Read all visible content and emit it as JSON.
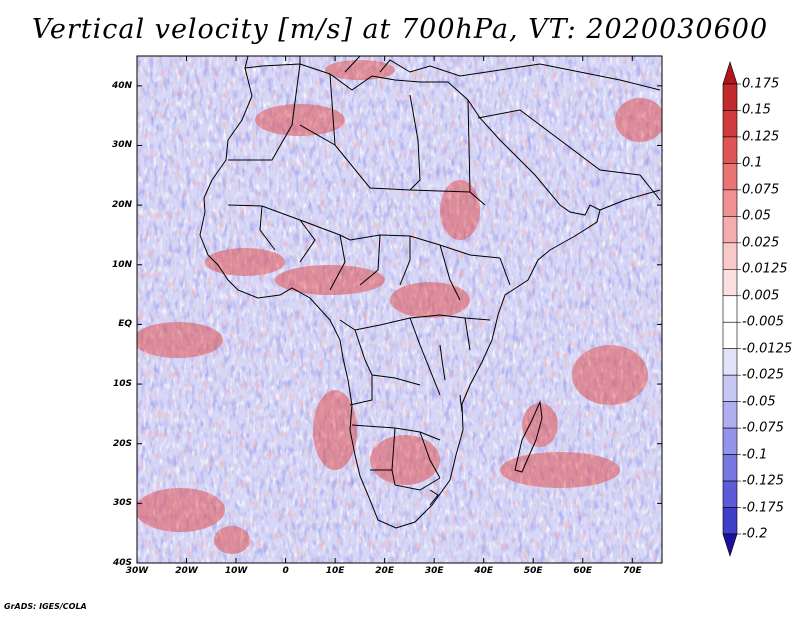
{
  "title": "Vertical velocity [m/s] at 700hPa, VT: 2020030600",
  "credit": "GrADS: IGES/COLA",
  "map": {
    "lon_range": [
      -30,
      76
    ],
    "lat_range": [
      -40,
      45
    ],
    "lat_ticks": [
      {
        "value": 40,
        "label": "40N"
      },
      {
        "value": 30,
        "label": "30N"
      },
      {
        "value": 20,
        "label": "20N"
      },
      {
        "value": 10,
        "label": "10N"
      },
      {
        "value": 0,
        "label": "EQ"
      },
      {
        "value": -10,
        "label": "10S"
      },
      {
        "value": -20,
        "label": "20S"
      },
      {
        "value": -30,
        "label": "30S"
      },
      {
        "value": -40,
        "label": "40S"
      }
    ],
    "lon_ticks": [
      {
        "value": -30,
        "label": "30W"
      },
      {
        "value": -20,
        "label": "20W"
      },
      {
        "value": -10,
        "label": "10W"
      },
      {
        "value": 0,
        "label": "0"
      },
      {
        "value": 10,
        "label": "10E"
      },
      {
        "value": 20,
        "label": "20E"
      },
      {
        "value": 30,
        "label": "30E"
      },
      {
        "value": 40,
        "label": "40E"
      },
      {
        "value": 50,
        "label": "50E"
      },
      {
        "value": 60,
        "label": "60E"
      },
      {
        "value": 70,
        "label": "70E"
      }
    ]
  },
  "colorbar": {
    "top_color": "#b4141e",
    "bottom_color": "#1e0ea0",
    "levels": [
      {
        "label": "0.175",
        "color": "#c02a2e"
      },
      {
        "label": "0.15",
        "color": "#d03c3e"
      },
      {
        "label": "0.125",
        "color": "#de5656"
      },
      {
        "label": "0.1",
        "color": "#e87474"
      },
      {
        "label": "0.075",
        "color": "#f09090"
      },
      {
        "label": "0.05",
        "color": "#f5acac"
      },
      {
        "label": "0.025",
        "color": "#f9c8c8"
      },
      {
        "label": "0.0125",
        "color": "#fce0e0"
      },
      {
        "label": "0.005",
        "color": "#ffffff"
      },
      {
        "label": "-0.005",
        "color": "#ffffff"
      },
      {
        "label": "-0.0125",
        "color": "#e2e2fa"
      },
      {
        "label": "-0.025",
        "color": "#c8c8f5"
      },
      {
        "label": "-0.05",
        "color": "#aeaef0"
      },
      {
        "label": "-0.075",
        "color": "#9494ea"
      },
      {
        "label": "-0.1",
        "color": "#7878e2"
      },
      {
        "label": "-0.125",
        "color": "#5c5cd8"
      },
      {
        "label": "-0.175",
        "color": "#3e3ec8"
      },
      {
        "label": "-0.2",
        "color": "#2c18b0"
      }
    ]
  },
  "colors": {
    "field_base": "#d6d6f6",
    "updraft": "#e05050",
    "downdraft": "#5a5ad6",
    "boundary": "#000000"
  }
}
